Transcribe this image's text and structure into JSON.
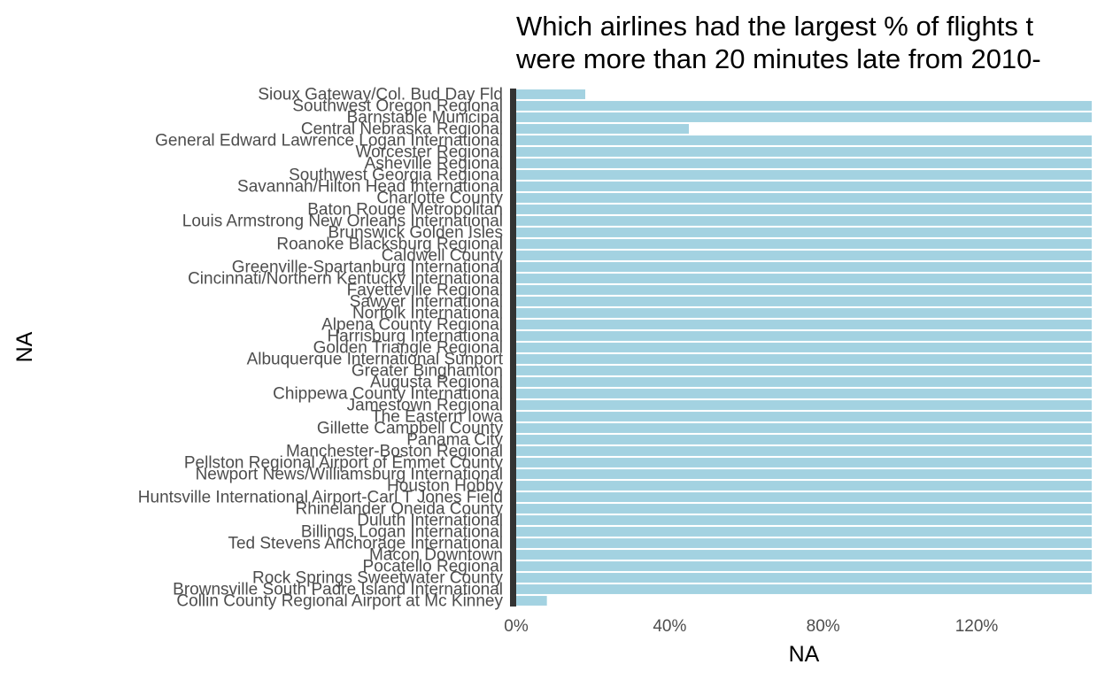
{
  "chart_data": {
    "type": "bar",
    "orientation": "horizontal",
    "title_lines": [
      "Which airlines had the largest % of flights t",
      "were more than 20 minutes late from 2010-"
    ],
    "xlabel": "NA",
    "ylabel": "NA",
    "xlim": [
      0,
      1.5
    ],
    "x_ticks": [
      0,
      0.4,
      0.8,
      1.2
    ],
    "x_tick_labels": [
      "0%",
      "40%",
      "80%",
      "120%"
    ],
    "grid": false,
    "legend": "none",
    "bar_color": "#a3d2e1",
    "axis_color": "#333333",
    "categories": [
      "Sioux Gateway/Col. Bud Day Fld",
      "Southwest Oregon Regional",
      "Barnstable Municipal",
      "Central Nebraska Regional",
      "General Edward Lawrence Logan International",
      "Worcester Regional",
      "Asheville Regional",
      "Southwest Georgia Regional",
      "Savannah/Hilton Head International",
      "Charlotte County",
      "Baton Rouge Metropolitan",
      "Louis Armstrong New Orleans International",
      "Brunswick Golden Isles",
      "Roanoke Blacksburg Regional",
      "Caldwell County",
      "Greenville-Spartanburg International",
      "Cincinnati/Northern Kentucky International",
      "Fayetteville Regional",
      "Sawyer International",
      "Norfolk International",
      "Alpena County Regional",
      "Harrisburg International",
      "Golden Triangle Regional",
      "Albuquerque International Sunport",
      "Greater Binghamton",
      "Augusta Regional",
      "Chippewa County International",
      "Jamestown Regional",
      "The Eastern Iowa",
      "Gillette Campbell County",
      "Panama City",
      "Manchester-Boston Regional",
      "Pellston Regional Airport of Emmet County",
      "Newport News/Williamsburg International",
      "Houston Hobby",
      "Huntsville International Airport-Carl T Jones Field",
      "Rhinelander Oneida County",
      "Duluth International",
      "Billings Logan International",
      "Ted Stevens Anchorage International",
      "Macon Downtown",
      "Pocatello Regional",
      "Rock Springs Sweetwater County",
      "Brownsville South Padre Island International",
      "Collin County Regional Airport at Mc Kinney"
    ],
    "values": [
      0.18,
      1.5,
      1.5,
      0.45,
      1.5,
      1.5,
      1.5,
      1.5,
      1.5,
      1.5,
      1.5,
      1.5,
      1.5,
      1.5,
      1.5,
      1.5,
      1.5,
      1.5,
      1.5,
      1.5,
      1.5,
      1.5,
      1.5,
      1.5,
      1.5,
      1.5,
      1.5,
      1.5,
      1.5,
      1.5,
      1.5,
      1.5,
      1.5,
      1.5,
      1.5,
      1.5,
      1.5,
      1.5,
      1.5,
      1.5,
      1.5,
      1.5,
      1.5,
      1.5,
      0.08
    ]
  }
}
